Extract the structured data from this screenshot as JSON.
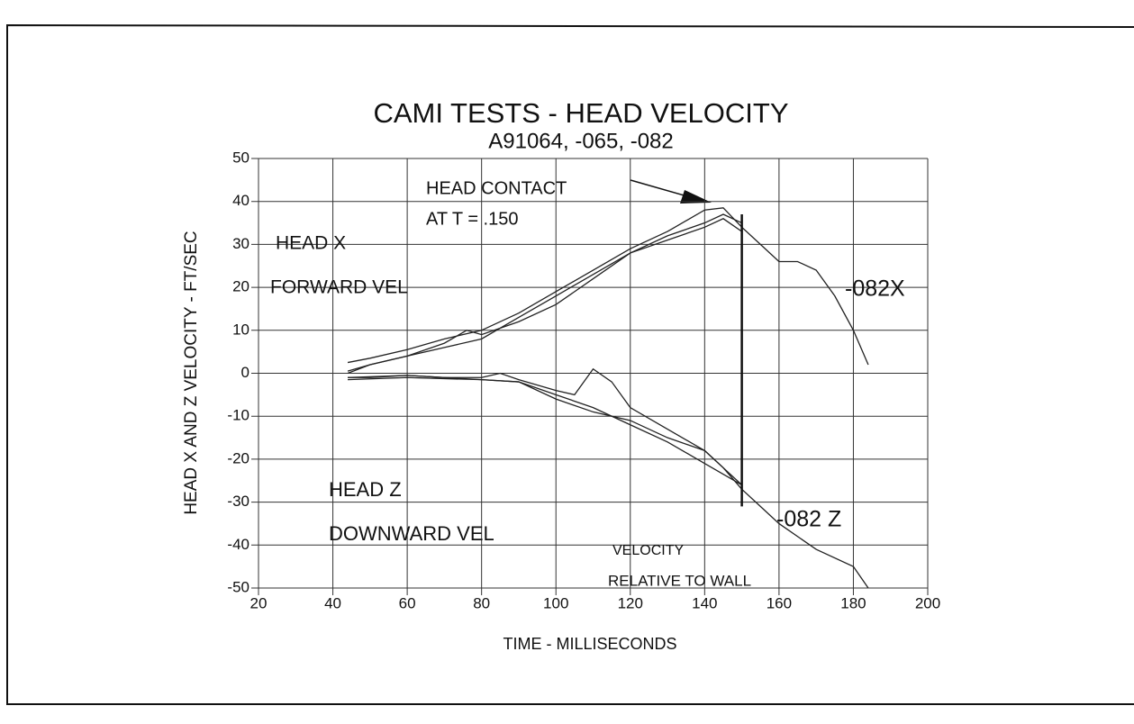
{
  "chart_data": {
    "type": "line",
    "title": "CAMI TESTS - HEAD VELOCITY",
    "subtitle": "A91064, -065, -082",
    "x_label": "TIME - MILLISECONDS",
    "y_label": "HEAD X AND Z VELOCITY - FT/SEC",
    "xlim": [
      20,
      200
    ],
    "xticks": [
      20,
      40,
      60,
      80,
      100,
      120,
      140,
      160,
      180,
      200
    ],
    "ylim": [
      -50,
      50
    ],
    "yticks": [
      -50,
      -40,
      -30,
      -20,
      -10,
      0,
      10,
      20,
      30,
      40,
      50
    ],
    "grid": true,
    "color": "#222222",
    "series": [
      {
        "x": [
          44,
          50,
          60,
          70,
          80,
          90,
          100,
          110,
          120,
          130,
          140,
          145,
          150,
          155,
          160,
          165,
          170,
          175,
          180,
          184
        ],
        "values": [
          2.5,
          3.5,
          5.5,
          8,
          10,
          14,
          19,
          24,
          29,
          33,
          38,
          38.5,
          34,
          30,
          26,
          26,
          24,
          18,
          10,
          2
        ]
      },
      {
        "x": [
          44,
          50,
          60,
          70,
          76,
          80,
          90,
          100,
          110,
          120,
          130,
          140,
          145,
          150
        ],
        "values": [
          0.5,
          2,
          4,
          7,
          10,
          9,
          12,
          16,
          22,
          28,
          31,
          34,
          36,
          33
        ]
      },
      {
        "x": [
          44,
          50,
          60,
          70,
          80,
          90,
          100,
          110,
          120,
          130,
          140,
          145,
          150
        ],
        "values": [
          0,
          2,
          4,
          6,
          8,
          13,
          18,
          23,
          28,
          32,
          35,
          37,
          35
        ]
      },
      {
        "x": [
          44,
          50,
          60,
          70,
          80,
          85,
          90,
          100,
          105,
          110,
          115,
          120,
          130,
          140,
          145,
          150,
          155,
          160,
          170,
          180,
          184
        ],
        "values": [
          -1,
          -1,
          -0.5,
          -1,
          -1,
          0,
          -1.5,
          -4,
          -5,
          1,
          -2,
          -8,
          -13,
          -18,
          -22,
          -27,
          -31,
          -35,
          -41,
          -45,
          -50
        ]
      },
      {
        "x": [
          44,
          60,
          80,
          90,
          100,
          110,
          120,
          130,
          140,
          145,
          150
        ],
        "values": [
          -1,
          -0.5,
          -1.5,
          -2,
          -6,
          -9,
          -11,
          -15,
          -18,
          -22,
          -26
        ]
      },
      {
        "x": [
          44,
          60,
          80,
          90,
          100,
          110,
          120,
          130,
          140,
          150
        ],
        "values": [
          -1.5,
          -1,
          -1.5,
          -2,
          -5,
          -8,
          -12,
          -16,
          -21,
          -26
        ]
      }
    ],
    "vline": {
      "x": 150,
      "y": [
        37,
        -31
      ]
    },
    "annotations": [
      "HEAD CONTACT",
      "AT T = .150",
      "HEAD X",
      "FORWARD VEL",
      "-082X",
      "HEAD Z",
      "DOWNWARD VEL",
      "-082 Z",
      "VELOCITY",
      "RELATIVE TO WALL"
    ]
  }
}
